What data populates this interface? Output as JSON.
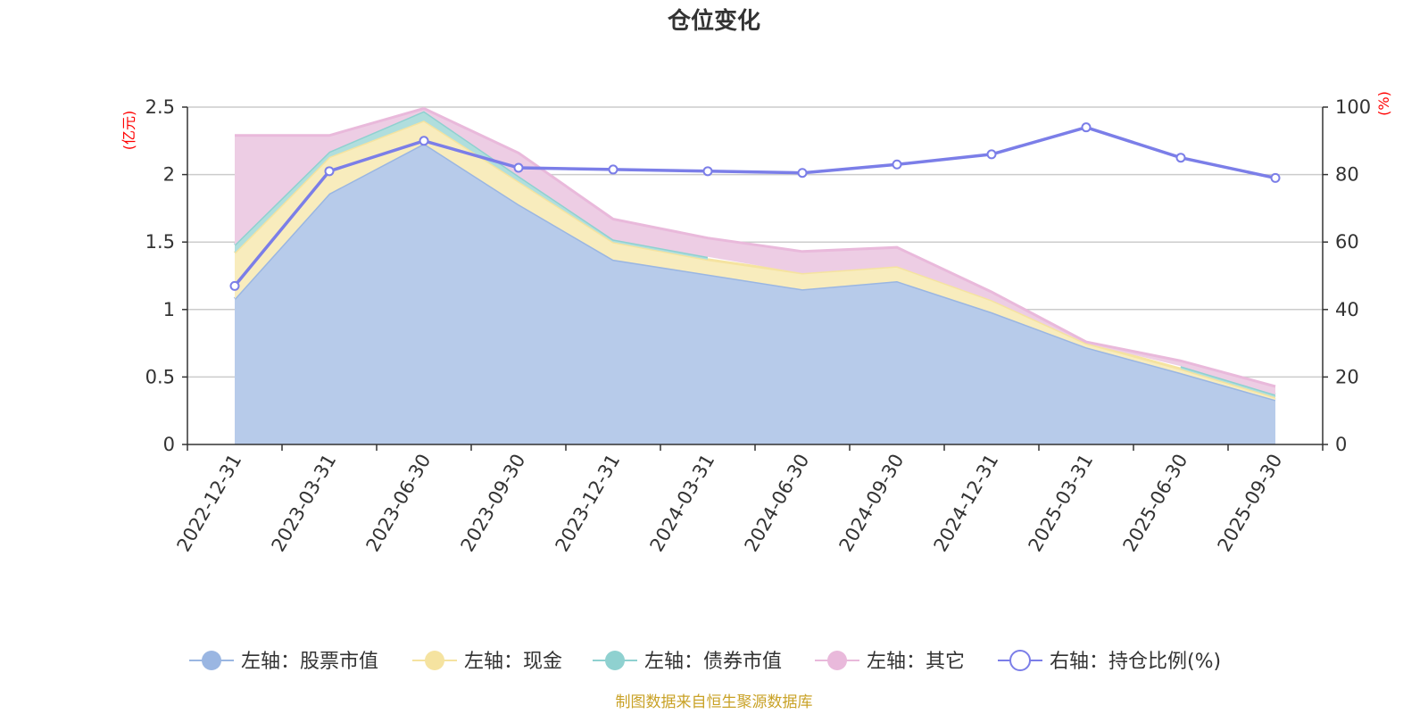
{
  "chart_data": {
    "type": "area",
    "title": "仓位变化",
    "categories": [
      "2022-12-31",
      "2023-03-31",
      "2023-06-30",
      "2023-09-30",
      "2023-12-31",
      "2024-03-31",
      "2024-06-30",
      "2024-09-30",
      "2024-12-31",
      "2025-03-31",
      "2025-06-30",
      "2025-09-30"
    ],
    "left_axis": {
      "unit": "(亿元)",
      "ylim": [
        0,
        2.5
      ],
      "ticks": [
        "0",
        "0.5",
        "1",
        "1.5",
        "2",
        "2.5"
      ],
      "tick_values": [
        0,
        0.5,
        1,
        1.5,
        2,
        2.5
      ]
    },
    "right_axis": {
      "unit": "(%)",
      "ylim": [
        0,
        100
      ],
      "ticks": [
        "0",
        "20",
        "40",
        "60",
        "80",
        "100"
      ],
      "tick_values": [
        0,
        20,
        40,
        60,
        80,
        100
      ]
    },
    "series": [
      {
        "name": "左轴：股票市值",
        "axis": "left",
        "kind": "stacked-area",
        "color": "#9ab6e2",
        "fill": "#b7cbea",
        "values": [
          1.08,
          1.86,
          2.23,
          1.78,
          1.37,
          1.26,
          1.15,
          1.21,
          0.98,
          0.72,
          0.53,
          0.33
        ]
      },
      {
        "name": "左轴：现金",
        "axis": "left",
        "kind": "stacked-area",
        "color": "#f5e3a0",
        "fill": "#f8ecbd",
        "values": [
          0.34,
          0.27,
          0.17,
          0.17,
          0.13,
          0.11,
          0.12,
          0.11,
          0.09,
          0.03,
          0.03,
          0.02
        ]
      },
      {
        "name": "左轴：债券市值",
        "axis": "left",
        "kind": "stacked-area",
        "color": "#8fd1d0",
        "fill": "#b0dedd",
        "values": [
          0.06,
          0.04,
          0.07,
          0.04,
          0.02,
          0.02,
          null,
          null,
          null,
          null,
          0.02,
          0.02
        ]
      },
      {
        "name": "左轴：其它",
        "axis": "left",
        "kind": "stacked-area",
        "color": "#e9b9db",
        "fill": "#edcde4",
        "values": [
          0.81,
          0.12,
          0.02,
          0.17,
          0.15,
          0.14,
          0.16,
          0.14,
          0.06,
          0.01,
          0.04,
          0.06
        ]
      },
      {
        "name": "右轴：持仓比例(%)",
        "axis": "right",
        "kind": "line",
        "color": "#7b7ee8",
        "values": [
          47.0,
          81.0,
          90.0,
          82.0,
          81.5,
          81.0,
          80.5,
          83.0,
          86.0,
          94.0,
          85.0,
          79.0
        ]
      }
    ],
    "legend_position": "bottom",
    "grid": true
  },
  "source_note": "制图数据来自恒生聚源数据库"
}
